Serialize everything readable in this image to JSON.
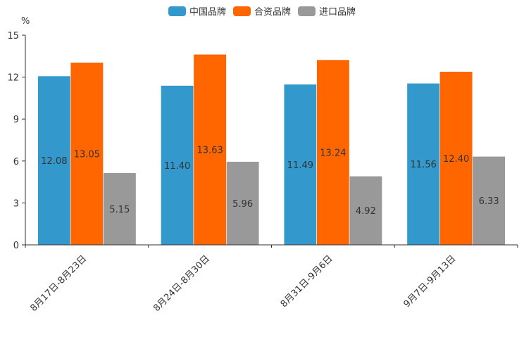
{
  "chart_data": {
    "type": "bar",
    "title": "",
    "xlabel": "",
    "ylabel": "%",
    "ylim": [
      0,
      15
    ],
    "yticks": [
      0,
      3,
      6,
      9,
      12,
      15
    ],
    "categories": [
      "8月17日-8月23日",
      "8月24日-8月30日",
      "8月31日-9月6日",
      "9月7日-9月13日"
    ],
    "series": [
      {
        "name": "中国品牌",
        "color": "#3399cc",
        "values": [
          12.08,
          11.4,
          11.49,
          11.56
        ],
        "labels": [
          "12.08",
          "11.40",
          "11.49",
          "11.56"
        ]
      },
      {
        "name": "合资品牌",
        "color": "#ff6600",
        "values": [
          13.05,
          13.63,
          13.24,
          12.4
        ],
        "labels": [
          "13.05",
          "13.63",
          "13.24",
          "12.40"
        ]
      },
      {
        "name": "进口品牌",
        "color": "#999999",
        "values": [
          5.15,
          5.96,
          4.92,
          6.33
        ],
        "labels": [
          "5.15",
          "5.96",
          "4.92",
          "6.33"
        ]
      }
    ],
    "legend_position": "top-center",
    "grid": false
  }
}
